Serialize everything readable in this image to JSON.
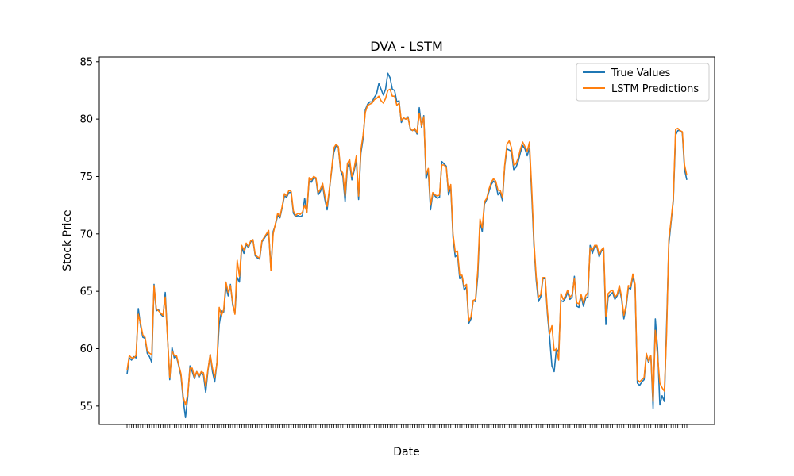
{
  "chart_data": {
    "type": "line",
    "title": "DVA - LSTM",
    "xlabel": "Date",
    "ylabel": "Stock Price",
    "ylim": [
      53.4,
      85.4
    ],
    "yticks": [
      55,
      60,
      65,
      70,
      75,
      80,
      85
    ],
    "grid": false,
    "legend_position": "top-right",
    "x_tick_count": 250,
    "series": [
      {
        "name": "True Values",
        "color": "#1f77b4",
        "values": [
          57.8,
          59.2,
          59.0,
          59.3,
          59.2,
          63.5,
          62.0,
          61.0,
          60.9,
          59.6,
          59.3,
          58.8,
          65.6,
          63.3,
          63.4,
          63.0,
          62.8,
          64.9,
          61.0,
          57.3,
          60.1,
          59.2,
          59.3,
          58.5,
          57.6,
          55.5,
          54.0,
          55.8,
          58.5,
          58.0,
          57.4,
          58.0,
          57.5,
          57.9,
          57.7,
          56.2,
          58.1,
          59.5,
          58.0,
          57.1,
          58.8,
          62.1,
          63.3,
          63.2,
          65.4,
          64.6,
          65.6,
          63.8,
          63.1,
          66.2,
          65.8,
          68.8,
          68.3,
          69.1,
          68.8,
          69.3,
          69.5,
          68.1,
          67.9,
          67.8,
          69.3,
          69.6,
          69.9,
          70.1,
          67.0,
          70.2,
          70.8,
          71.6,
          71.4,
          72.3,
          73.3,
          73.2,
          73.6,
          73.6,
          71.8,
          71.5,
          71.6,
          71.5,
          71.6,
          73.1,
          71.9,
          74.7,
          74.5,
          74.9,
          74.8,
          73.4,
          73.7,
          74.2,
          73.0,
          72.1,
          73.8,
          75.5,
          77.1,
          77.7,
          77.5,
          75.5,
          75.0,
          72.8,
          75.8,
          76.2,
          74.7,
          75.5,
          76.4,
          73.0,
          77.0,
          78.3,
          80.8,
          81.3,
          81.5,
          81.5,
          81.9,
          82.2,
          83.1,
          82.6,
          82.1,
          82.6,
          84.0,
          83.6,
          82.6,
          82.5,
          81.5,
          81.6,
          79.7,
          80.1,
          80.0,
          80.2,
          79.1,
          79.0,
          79.1,
          78.7,
          81.0,
          79.3,
          80.3,
          74.8,
          75.5,
          72.1,
          73.5,
          73.3,
          73.1,
          73.2,
          76.3,
          76.1,
          75.9,
          73.4,
          74.1,
          69.7,
          68.0,
          68.2,
          66.1,
          66.3,
          65.1,
          65.4,
          62.2,
          62.6,
          64.2,
          64.1,
          66.3,
          71.0,
          70.2,
          72.6,
          73.0,
          73.7,
          74.3,
          74.6,
          74.4,
          73.4,
          73.6,
          72.9,
          75.9,
          77.4,
          77.3,
          77.2,
          75.6,
          75.8,
          76.3,
          77.1,
          77.7,
          77.4,
          76.8,
          77.5,
          73.5,
          69.0,
          66.0,
          64.1,
          64.5,
          66.1,
          66.1,
          63.0,
          60.9,
          58.5,
          58.0,
          60.0,
          59.7,
          64.2,
          64.1,
          64.4,
          64.9,
          64.3,
          64.5,
          66.3,
          63.7,
          63.6,
          64.6,
          63.7,
          64.4,
          64.5,
          69.0,
          68.3,
          68.9,
          68.9,
          68.0,
          68.5,
          68.7,
          62.1,
          64.5,
          64.7,
          64.9,
          64.3,
          64.6,
          65.3,
          64.3,
          62.6,
          63.6,
          65.3,
          65.2,
          66.3,
          65.3,
          57.0,
          56.8,
          57.1,
          57.3,
          59.4,
          58.8,
          59.4,
          54.8,
          62.6,
          60.0,
          55.1,
          55.9,
          55.4,
          62.0,
          69.1,
          71.0,
          72.9,
          78.6,
          79.0,
          79.0,
          78.8,
          75.6,
          74.7
        ]
      },
      {
        "name": "LSTM Predictions",
        "color": "#ff7f0e",
        "values": [
          58.1,
          59.4,
          59.2,
          59.2,
          59.4,
          63.0,
          62.2,
          61.2,
          61.0,
          59.8,
          59.6,
          59.5,
          65.5,
          63.5,
          63.3,
          63.1,
          62.9,
          64.5,
          61.0,
          57.5,
          59.8,
          59.4,
          59.4,
          58.6,
          57.8,
          55.8,
          55.1,
          56.0,
          58.3,
          58.3,
          57.5,
          58.0,
          57.6,
          58.0,
          57.9,
          56.7,
          58.2,
          59.5,
          58.3,
          57.5,
          58.7,
          63.6,
          62.9,
          63.4,
          65.8,
          64.9,
          65.5,
          64.0,
          63.0,
          67.7,
          66.3,
          69.0,
          68.6,
          69.2,
          68.9,
          69.4,
          69.5,
          68.2,
          68.0,
          67.9,
          69.4,
          69.7,
          70.0,
          70.3,
          66.8,
          70.0,
          70.9,
          71.8,
          71.5,
          72.4,
          73.5,
          73.3,
          73.8,
          73.7,
          72.0,
          71.6,
          71.8,
          71.7,
          71.9,
          72.5,
          71.9,
          74.9,
          74.7,
          75.0,
          74.9,
          73.6,
          73.9,
          74.4,
          73.3,
          72.4,
          73.9,
          75.6,
          77.5,
          77.8,
          77.6,
          75.6,
          75.3,
          73.3,
          76.1,
          76.5,
          75.0,
          75.7,
          76.8,
          73.3,
          77.3,
          78.6,
          80.6,
          81.2,
          81.3,
          81.4,
          81.7,
          81.8,
          82.0,
          81.6,
          81.4,
          81.8,
          82.5,
          82.6,
          82.0,
          82.0,
          81.2,
          81.4,
          79.9,
          80.1,
          80.0,
          80.1,
          79.2,
          79.0,
          79.2,
          78.8,
          80.5,
          79.4,
          80.2,
          75.2,
          75.7,
          72.5,
          73.6,
          73.4,
          73.3,
          73.4,
          76.0,
          76.0,
          75.8,
          73.7,
          74.3,
          70.0,
          68.4,
          68.5,
          66.4,
          66.4,
          65.4,
          65.6,
          62.4,
          62.8,
          64.2,
          64.3,
          66.8,
          71.3,
          70.5,
          72.8,
          73.1,
          73.9,
          74.5,
          74.8,
          74.6,
          73.8,
          73.8,
          73.2,
          76.0,
          77.8,
          78.1,
          77.5,
          76.0,
          76.1,
          76.6,
          77.4,
          78.0,
          77.6,
          77.2,
          78.0,
          74.0,
          69.4,
          66.3,
          64.5,
          64.7,
          66.2,
          66.2,
          63.3,
          61.3,
          62.0,
          59.8,
          60.0,
          59.0,
          64.8,
          64.3,
          64.6,
          65.1,
          64.5,
          64.7,
          66.1,
          64.0,
          63.9,
          64.7,
          64.0,
          64.6,
          64.9,
          68.8,
          68.6,
          69.0,
          69.0,
          68.2,
          68.6,
          68.8,
          62.8,
          64.8,
          65.0,
          65.1,
          64.5,
          64.7,
          65.5,
          64.5,
          62.9,
          63.8,
          65.5,
          65.4,
          66.5,
          65.6,
          57.3,
          57.1,
          57.3,
          57.5,
          59.6,
          58.9,
          59.4,
          55.4,
          61.6,
          59.3,
          57.0,
          56.6,
          56.3,
          61.2,
          69.5,
          71.2,
          73.1,
          79.1,
          79.2,
          79.0,
          78.9,
          76.0,
          75.1
        ]
      }
    ]
  }
}
